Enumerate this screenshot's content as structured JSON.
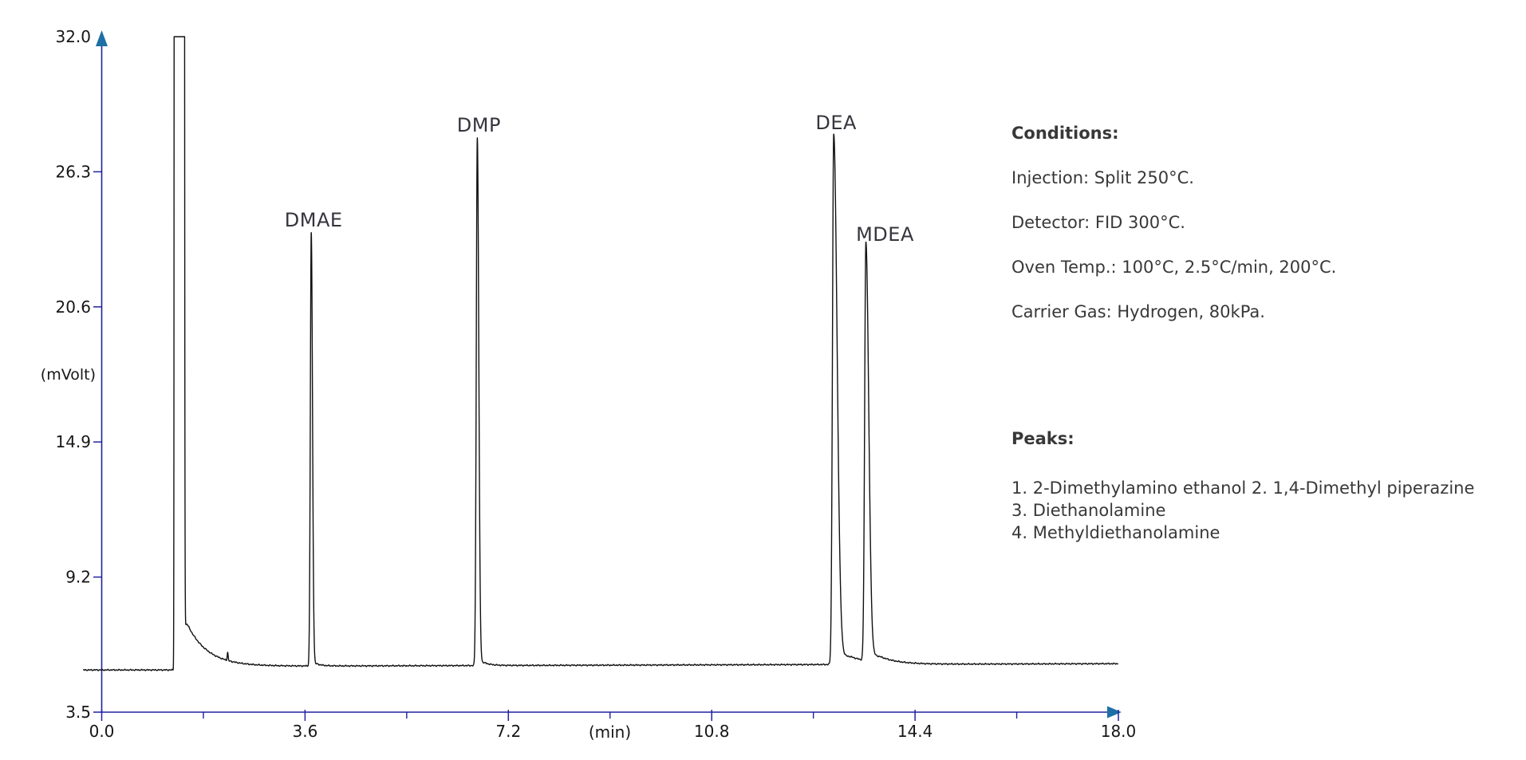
{
  "chart_data": {
    "type": "line",
    "title": "",
    "xlabel": "(min)",
    "ylabel": "(mVolt)",
    "xlim": [
      0.0,
      18.0
    ],
    "ylim": [
      3.5,
      32.0
    ],
    "x_ticks": [
      0.0,
      3.6,
      7.2,
      10.8,
      14.4,
      18.0
    ],
    "x_minor_ticks": [
      1.8,
      5.4,
      9.0,
      12.6,
      16.2
    ],
    "y_ticks": [
      3.5,
      9.2,
      14.9,
      20.6,
      26.3,
      32.0
    ],
    "grid": "off",
    "axis_color": "#2121a0",
    "axis_arrow_color": "#1e6fa5",
    "trace_color": "#111111",
    "baseline_start_mV": 5.28,
    "baseline_mV": 5.42,
    "baseline_drift_mV_per_min": 0.007,
    "clip_mV": 32.0,
    "solvent_front": {
      "t_start_min": 1.3,
      "t_end_min": 1.44,
      "sigma_rise": 0.008,
      "sigma_fall": 0.012,
      "height_mV": 400,
      "tail_amp_mV": 2.2,
      "tail_tau_min": 0.36
    },
    "artifact_blip": {
      "t_min": 2.23,
      "height_mV": 0.35,
      "sigma": 0.008
    },
    "peaks": [
      {
        "number": 1,
        "label": "DMAE",
        "t_min": 3.71,
        "apex_mV": 23.7,
        "sigma_rise": 0.016,
        "sigma_fall": 0.022,
        "tail_amp_mV": 0.25,
        "tail_tau_min": 0.1,
        "label_dx": 3
      },
      {
        "number": 2,
        "label": "DMP",
        "t_min": 6.65,
        "apex_mV": 27.7,
        "sigma_rise": 0.018,
        "sigma_fall": 0.026,
        "tail_amp_mV": 0.35,
        "tail_tau_min": 0.12,
        "label_dx": 2
      },
      {
        "number": 3,
        "label": "DEA",
        "t_min": 12.96,
        "apex_mV": 27.8,
        "sigma_rise": 0.022,
        "sigma_fall": 0.06,
        "tail_amp_mV": 0.8,
        "tail_tau_min": 0.35,
        "label_dx": 3
      },
      {
        "number": 4,
        "label": "MDEA",
        "t_min": 13.53,
        "apex_mV": 23.1,
        "sigma_rise": 0.022,
        "sigma_fall": 0.05,
        "tail_amp_mV": 0.6,
        "tail_tau_min": 0.3,
        "label_dx": 24
      }
    ]
  },
  "conditions_section": {
    "heading": "Conditions:",
    "lines": [
      "Injection: Split 250°C.",
      "Detector: FID 300°C.",
      "Oven Temp.: 100°C, 2.5°C/min, 200°C.",
      "Carrier Gas: Hydrogen, 80kPa."
    ]
  },
  "peaks_section": {
    "heading": "Peaks:",
    "lines": [
      "1. 2-Dimethylamino ethanol 2. 1,4-Dimethyl piperazine",
      "3. Diethanolamine",
      "4. Methyldiethanolamine"
    ]
  }
}
